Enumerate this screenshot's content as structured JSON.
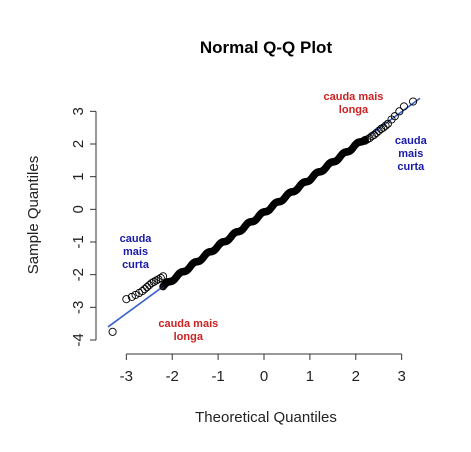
{
  "chart_data": {
    "type": "scatter",
    "title": "Normal Q-Q Plot",
    "xlabel": "Theoretical Quantiles",
    "ylabel": "Sample Quantiles",
    "xlim": [
      -3.4,
      3.4
    ],
    "ylim": [
      -4,
      3.5
    ],
    "x_ticks": [
      "-3",
      "-2",
      "-1",
      "0",
      "1",
      "2",
      "3"
    ],
    "y_ticks": [
      "-4",
      "-3",
      "-2",
      "-1",
      "0",
      "1",
      "2",
      "3"
    ],
    "grid": false,
    "reference_line": {
      "x": [
        -3.4,
        3.4
      ],
      "y": [
        -3.6,
        3.4
      ],
      "color": "#3a5fcd"
    },
    "point_color": "#000000",
    "series": [
      {
        "values": [
          [
            -3.3,
            -3.75
          ],
          [
            -3.0,
            -2.75
          ],
          [
            -2.88,
            -2.68
          ],
          [
            -2.8,
            -2.62
          ],
          [
            -2.72,
            -2.56
          ],
          [
            -2.65,
            -2.5
          ],
          [
            -2.6,
            -2.44
          ],
          [
            -2.55,
            -2.38
          ],
          [
            -2.5,
            -2.32
          ],
          [
            -2.45,
            -2.26
          ],
          [
            -2.4,
            -2.22
          ],
          [
            -2.35,
            -2.18
          ],
          [
            -2.3,
            -2.14
          ],
          [
            -2.25,
            -2.1
          ],
          [
            -2.2,
            -2.05
          ],
          [
            2.2,
            2.1
          ],
          [
            2.25,
            2.14
          ],
          [
            2.3,
            2.18
          ],
          [
            2.35,
            2.24
          ],
          [
            2.4,
            2.28
          ],
          [
            2.45,
            2.34
          ],
          [
            2.5,
            2.4
          ],
          [
            2.55,
            2.46
          ],
          [
            2.6,
            2.5
          ],
          [
            2.65,
            2.56
          ],
          [
            2.7,
            2.62
          ],
          [
            2.78,
            2.75
          ],
          [
            2.85,
            2.85
          ],
          [
            2.95,
            3.0
          ],
          [
            3.05,
            3.15
          ],
          [
            3.25,
            3.3
          ]
        ],
        "line_range": [
          -2.2,
          2.2
        ]
      }
    ],
    "annotations": [
      {
        "lines": [
          "cauda mais",
          "longa"
        ],
        "color": "#cc2222",
        "x": 1.95,
        "y": 3.35
      },
      {
        "lines": [
          "cauda",
          "mais",
          "curta"
        ],
        "color": "#1a1aaa",
        "x": 3.2,
        "y": 2.0
      },
      {
        "lines": [
          "cauda",
          "mais",
          "curta"
        ],
        "color": "#1a1aaa",
        "x": -2.8,
        "y": -1.0
      },
      {
        "lines": [
          "cauda mais",
          "longa"
        ],
        "color": "#cc2222",
        "x": -1.65,
        "y": -3.6
      }
    ]
  }
}
